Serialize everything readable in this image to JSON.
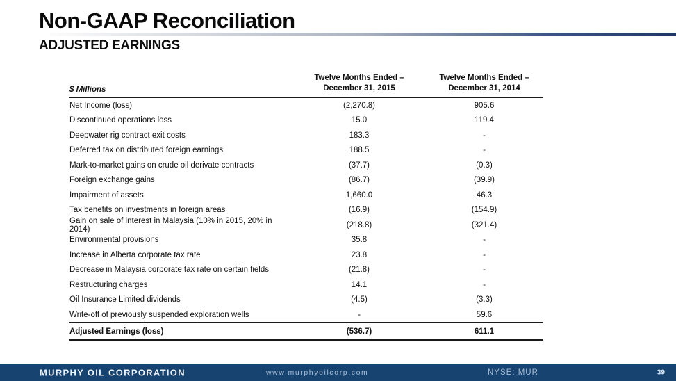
{
  "slide": {
    "title": "Non-GAAP Reconciliation",
    "subtitle": "ADJUSTED EARNINGS"
  },
  "table": {
    "unit_label": "$ Millions",
    "columns": {
      "col_2015": {
        "line1": "Twelve Months Ended –",
        "line2": "December 31, 2015"
      },
      "col_2014": {
        "line1": "Twelve Months Ended –",
        "line2": "December 31, 2014"
      }
    },
    "rows": [
      {
        "label": "Net Income (loss)",
        "y2015": "(2,270.8)",
        "y2014": "905.6"
      },
      {
        "label": "Discontinued operations loss",
        "y2015": "15.0",
        "y2014": "119.4"
      },
      {
        "label": "Deepwater rig contract exit costs",
        "y2015": "183.3",
        "y2014": "-"
      },
      {
        "label": "Deferred tax on distributed foreign earnings",
        "y2015": "188.5",
        "y2014": "-"
      },
      {
        "label": "Mark-to-market gains on crude oil derivate contracts",
        "y2015": "(37.7)",
        "y2014": "(0.3)"
      },
      {
        "label": "Foreign exchange gains",
        "y2015": "(86.7)",
        "y2014": "(39.9)"
      },
      {
        "label": "Impairment of assets",
        "y2015": "1,660.0",
        "y2014": "46.3"
      },
      {
        "label": "Tax benefits on investments in foreign areas",
        "y2015": "(16.9)",
        "y2014": "(154.9)"
      },
      {
        "label": "Gain on sale of interest in Malaysia (10% in 2015, 20% in 2014)",
        "y2015": "(218.8)",
        "y2014": "(321.4)"
      },
      {
        "label": "Environmental provisions",
        "y2015": "35.8",
        "y2014": "-"
      },
      {
        "label": "Increase in Alberta corporate tax rate",
        "y2015": "23.8",
        "y2014": "-"
      },
      {
        "label": "Decrease in Malaysia corporate tax rate on certain fields",
        "y2015": "(21.8)",
        "y2014": "-"
      },
      {
        "label": "Restructuring charges",
        "y2015": "14.1",
        "y2014": "-"
      },
      {
        "label": "Oil Insurance Limited dividends",
        "y2015": "(4.5)",
        "y2014": "(3.3)"
      },
      {
        "label": "Write-off of previously suspended exploration wells",
        "y2015": "-",
        "y2014": "59.6"
      }
    ],
    "total_row": {
      "label": "Adjusted Earnings (loss)",
      "y2015": "(536.7)",
      "y2014": "611.1"
    }
  },
  "footer": {
    "company": "MURPHY OIL CORPORATION",
    "website": "www.murphyoilcorp.com",
    "ticker": "NYSE: MUR",
    "page_number": "39"
  },
  "colors": {
    "footer_bg": "#174370",
    "rule_gradient_end": "#1f3864",
    "footer_muted_text": "#a9bdd4",
    "text": "#111111"
  }
}
